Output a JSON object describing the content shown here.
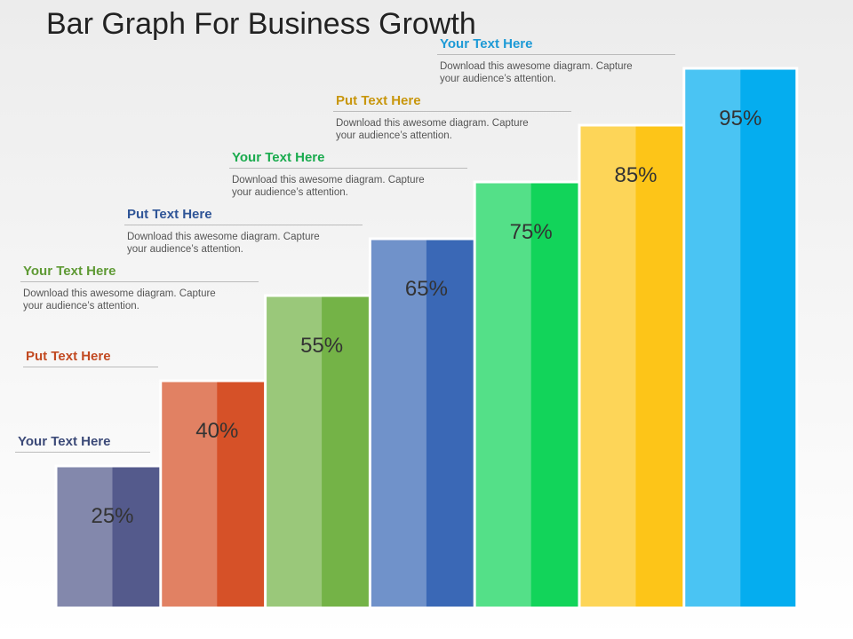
{
  "chart_data": {
    "type": "bar",
    "title": "Bar Graph For Business Growth",
    "values": [
      25,
      40,
      55,
      65,
      75,
      85,
      95
    ],
    "value_labels": [
      "25%",
      "40%",
      "55%",
      "65%",
      "75%",
      "85%",
      "95%"
    ],
    "colors": [
      "#545a8c",
      "#d65128",
      "#74b347",
      "#3a68b6",
      "#12d45a",
      "#fdc518",
      "#05adef"
    ],
    "annotations": [
      {
        "title": "Your Text Here",
        "color": "#3c4a78"
      },
      {
        "title": "Put Text Here",
        "color": "#c24a22"
      },
      {
        "title": "Your Text Here",
        "color": "#5f9a35",
        "text": "Download this awesome diagram. Capture your audience’s attention."
      },
      {
        "title": "Put Text Here",
        "color": "#2f5597",
        "text": "Download this awesome diagram. Capture your audience’s attention."
      },
      {
        "title": "Your Text Here",
        "color": "#1aab4e",
        "text": "Download this awesome diagram. Capture your audience’s attention."
      },
      {
        "title": "Put Text Here",
        "color": "#c8960c",
        "text": "Download this awesome diagram. Capture your audience’s attention."
      },
      {
        "title": "Your Text Here",
        "color": "#1d9ad6",
        "text": "Download this awesome diagram. Capture your audience’s attention."
      }
    ]
  }
}
